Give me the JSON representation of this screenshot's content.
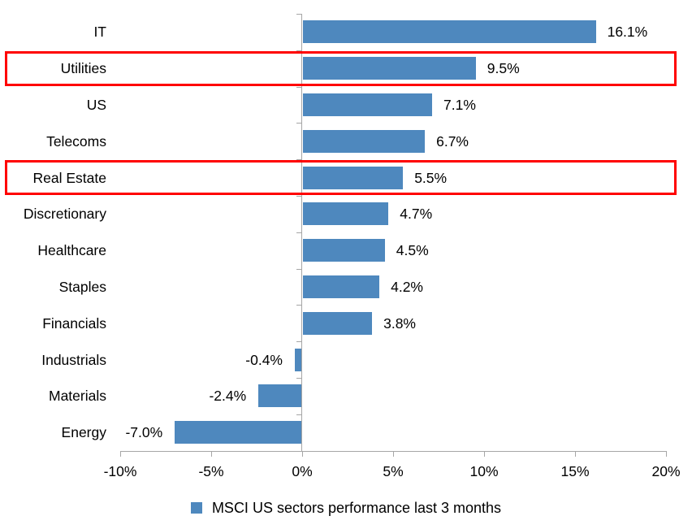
{
  "chart_data": {
    "type": "bar",
    "orientation": "horizontal",
    "legend": "MSCI US sectors performance last 3 months",
    "legend_position": "bottom-center",
    "categories": [
      "IT",
      "Utilities",
      "US",
      "Telecoms",
      "Real Estate",
      "Discretionary",
      "Healthcare",
      "Staples",
      "Financials",
      "Industrials",
      "Materials",
      "Energy"
    ],
    "values": [
      16.1,
      9.5,
      7.1,
      6.7,
      5.5,
      4.7,
      4.5,
      4.2,
      3.8,
      -0.4,
      -2.4,
      -7.0
    ],
    "value_labels": [
      "16.1%",
      "9.5%",
      "7.1%",
      "6.7%",
      "5.5%",
      "4.7%",
      "4.5%",
      "4.2%",
      "3.8%",
      "-0.4%",
      "-2.4%",
      "-7.0%"
    ],
    "highlighted_categories": [
      "Utilities",
      "Real Estate"
    ],
    "x_ticks": [
      "-10%",
      "-5%",
      "0%",
      "5%",
      "10%",
      "15%",
      "20%"
    ],
    "x_tick_values": [
      -10,
      -5,
      0,
      5,
      10,
      15,
      20
    ],
    "xlim": [
      -10,
      20
    ],
    "grid": false,
    "colors": {
      "bar": "#4E88BE",
      "highlight_box": "#FF0000",
      "axis": "#A6A6A6",
      "text": "#000000",
      "background": "#FFFFFF"
    }
  }
}
